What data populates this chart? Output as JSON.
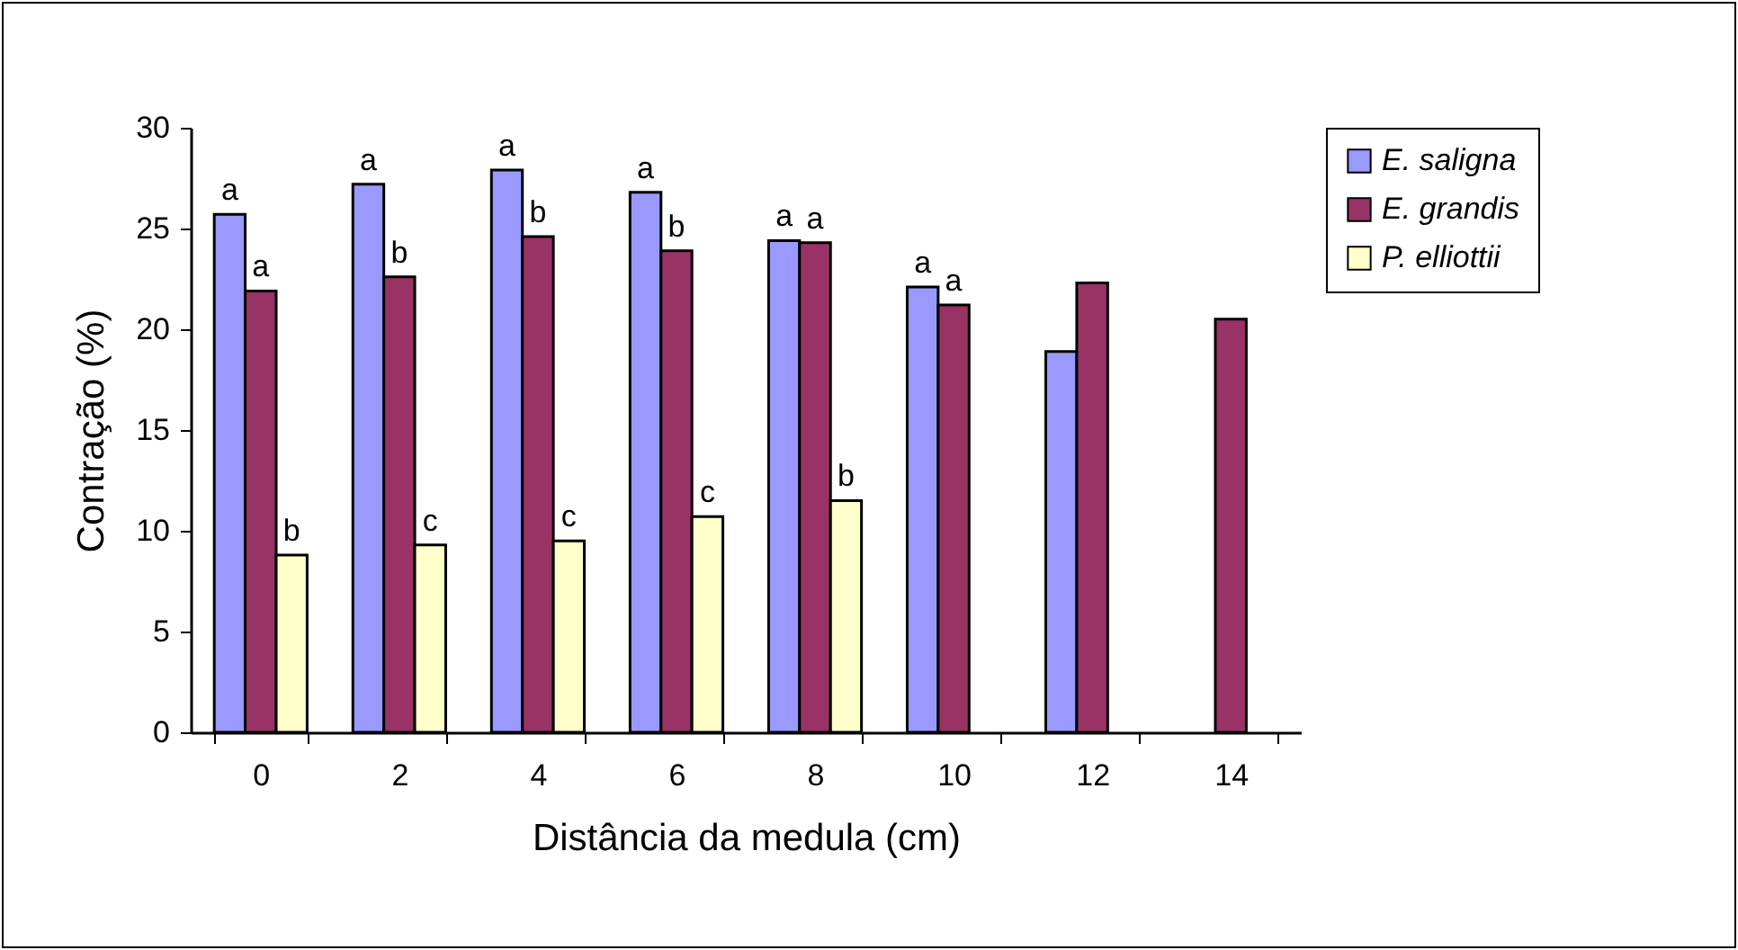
{
  "chart_data": {
    "type": "bar",
    "xlabel": "Distância da medula (cm)",
    "ylabel": "Contração (%)",
    "categories": [
      "0",
      "2",
      "4",
      "6",
      "8",
      "10",
      "12",
      "14"
    ],
    "series": [
      {
        "name": "E. saligna",
        "color": "#9999ff",
        "values": [
          25.7,
          27.2,
          27.9,
          26.8,
          24.4,
          22.1,
          18.9,
          null
        ],
        "value_labels": [
          "a",
          "a",
          "a",
          "a",
          "a",
          "a",
          null,
          null
        ]
      },
      {
        "name": "E. grandis",
        "color": "#993366",
        "values": [
          21.9,
          22.6,
          24.6,
          23.9,
          24.3,
          21.2,
          22.3,
          20.5
        ],
        "value_labels": [
          "a",
          "b",
          "b",
          "b",
          "a",
          "a",
          null,
          null
        ]
      },
      {
        "name": "P. elliottii",
        "color": "#ffffcc",
        "values": [
          8.8,
          9.3,
          9.5,
          10.7,
          11.5,
          null,
          null,
          null
        ],
        "value_labels": [
          "b",
          "c",
          "c",
          "c",
          "b",
          null,
          null,
          null
        ]
      }
    ],
    "ylim": [
      0,
      30
    ],
    "yticks": [
      0,
      5,
      10,
      15,
      20,
      25,
      30
    ],
    "grid": false,
    "legend": "right"
  }
}
